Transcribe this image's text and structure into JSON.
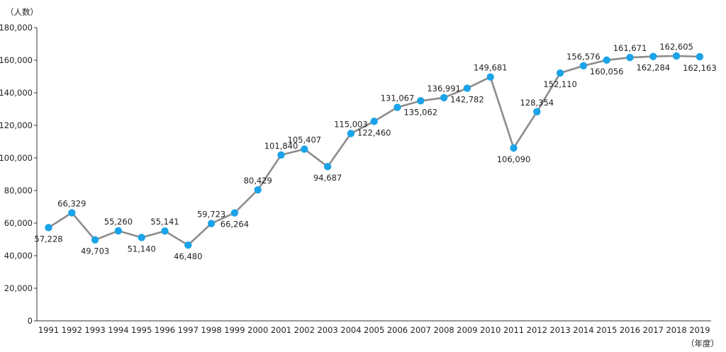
{
  "chart_data": {
    "type": "line",
    "ylabel": "（人数）",
    "xlabel": "（年度）",
    "ylim": [
      0,
      180000
    ],
    "yticks": [
      "0",
      "20,000",
      "40,000",
      "60,000",
      "80,000",
      "100,000",
      "120,000",
      "140,000",
      "160,000",
      "180,000"
    ],
    "grid": false,
    "categories": [
      "1991",
      "1992",
      "1993",
      "1994",
      "1995",
      "1996",
      "1997",
      "1998",
      "1999",
      "2000",
      "2001",
      "2002",
      "2003",
      "2004",
      "2005",
      "2006",
      "2007",
      "2008",
      "2009",
      "2010",
      "2011",
      "2012",
      "2013",
      "2014",
      "2015",
      "2016",
      "2017",
      "2018",
      "2019"
    ],
    "values": [
      57228,
      66329,
      49703,
      55260,
      51140,
      55141,
      46480,
      59723,
      66264,
      80429,
      101840,
      105407,
      94687,
      115003,
      122460,
      131067,
      135062,
      136991,
      142782,
      149681,
      106090,
      128354,
      152110,
      156576,
      160056,
      161671,
      162284,
      162605,
      162163
    ],
    "data_labels": [
      "57,228",
      "66,329",
      "49,703",
      "55,260",
      "51,140",
      "55,141",
      "46,480",
      "59,723",
      "66,264",
      "80,429",
      "101,840",
      "105,407",
      "94,687",
      "115,003",
      "122,460",
      "131,067",
      "135,062",
      "136,991",
      "142,782",
      "149,681",
      "106,090",
      "128,354",
      "152,110",
      "156,576",
      "160,056",
      "161,671",
      "162,284",
      "162,605",
      "162,163"
    ],
    "label_positions": [
      "below",
      "above",
      "below",
      "above",
      "below",
      "above",
      "below",
      "above",
      "below",
      "above",
      "above",
      "above",
      "below",
      "above",
      "below",
      "above",
      "below",
      "above",
      "below",
      "above",
      "below",
      "above",
      "below",
      "above",
      "below",
      "above",
      "below",
      "above",
      "below"
    ],
    "colors": {
      "line": "#8c8c8c",
      "marker": "#1aa3e8",
      "axis": "#333333"
    }
  }
}
